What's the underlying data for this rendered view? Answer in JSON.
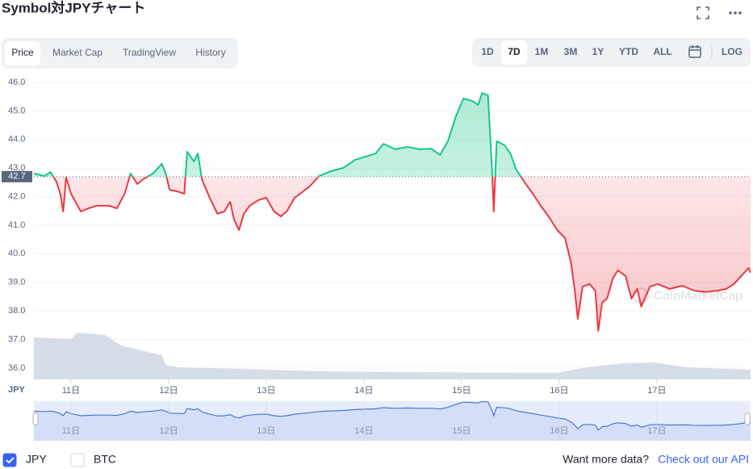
{
  "header": {
    "title": "Symbol対JPYチャート"
  },
  "tabs": [
    "Price",
    "Market Cap",
    "TradingView",
    "History"
  ],
  "active_tab": 0,
  "ranges": [
    "1D",
    "7D",
    "1M",
    "3M",
    "1Y",
    "YTD",
    "ALL"
  ],
  "active_range": 1,
  "scale_button": "LOG",
  "legend": [
    {
      "label": "JPY",
      "checked": true
    },
    {
      "label": "BTC",
      "checked": false
    }
  ],
  "footer": {
    "text": "Want more data?",
    "link": "Check out our API"
  },
  "chart_data": {
    "type": "line",
    "watermark": "CoinMarketCap",
    "y_unit": "JPY",
    "up_color": "#16c784",
    "down_color": "#ea3943",
    "volume_color": "#cfd6e4",
    "navigator_color": "#4a78d0",
    "reference_line": 42.7,
    "x": [
      10.62,
      10.73,
      10.79,
      10.85,
      10.89,
      10.92,
      10.95,
      11.0,
      11.1,
      11.18,
      11.26,
      11.39,
      11.47,
      11.55,
      11.61,
      11.68,
      11.74,
      11.84,
      11.93,
      11.97,
      12.01,
      12.11,
      12.16,
      12.19,
      12.26,
      12.3,
      12.34,
      12.42,
      12.5,
      12.57,
      12.63,
      12.67,
      12.72,
      12.77,
      12.83,
      12.92,
      13.0,
      13.08,
      13.15,
      13.21,
      13.29,
      13.37,
      13.45,
      13.54,
      13.66,
      13.79,
      13.91,
      13.99,
      14.12,
      14.2,
      14.32,
      14.45,
      14.57,
      14.69,
      14.78,
      14.86,
      14.94,
      15.02,
      15.11,
      15.17,
      15.21,
      15.27,
      15.31,
      15.33,
      15.36,
      15.44,
      15.5,
      15.56,
      15.64,
      15.73,
      15.81,
      15.89,
      15.98,
      16.06,
      16.12,
      16.16,
      16.19,
      16.24,
      16.31,
      16.37,
      16.4,
      16.44,
      16.49,
      16.55,
      16.6,
      16.68,
      16.74,
      16.8,
      16.84,
      16.93,
      17.01,
      17.13,
      17.26,
      17.38,
      17.5,
      17.63,
      17.71,
      17.79,
      17.88,
      17.94,
      17.96
    ],
    "values": [
      42.81,
      42.72,
      42.86,
      42.53,
      42.1,
      41.48,
      42.67,
      42.1,
      41.48,
      41.59,
      41.68,
      41.68,
      41.59,
      42.1,
      42.81,
      42.44,
      42.61,
      42.81,
      43.15,
      42.81,
      42.24,
      42.16,
      42.1,
      43.57,
      43.23,
      43.51,
      42.61,
      41.96,
      41.4,
      41.48,
      41.82,
      41.2,
      40.83,
      41.4,
      41.68,
      41.88,
      41.96,
      41.48,
      41.31,
      41.48,
      41.96,
      42.16,
      42.38,
      42.72,
      42.89,
      43.01,
      43.29,
      43.37,
      43.51,
      43.85,
      43.66,
      43.74,
      43.66,
      43.68,
      43.46,
      43.94,
      44.79,
      45.44,
      45.35,
      45.21,
      45.63,
      45.55,
      43.09,
      41.48,
      43.94,
      43.8,
      43.51,
      42.95,
      42.53,
      42.1,
      41.68,
      41.31,
      40.83,
      40.55,
      39.7,
      38.71,
      37.72,
      38.85,
      38.94,
      38.71,
      37.3,
      38.29,
      38.43,
      39.14,
      39.42,
      39.22,
      38.43,
      38.77,
      38.15,
      38.85,
      38.94,
      38.77,
      38.88,
      38.71,
      38.66,
      38.71,
      38.77,
      38.94,
      39.28,
      39.5,
      39.33
    ],
    "volume": {
      "x": [
        10.62,
        11.0,
        11.06,
        11.35,
        11.51,
        11.93,
        11.97,
        12.09,
        12.75,
        13.58,
        14.4,
        15.98,
        16.23,
        16.64,
        16.97,
        17.3,
        17.96
      ],
      "values": [
        52,
        50,
        58,
        55,
        42,
        30,
        18,
        15,
        13,
        10,
        9,
        8,
        14,
        20,
        21,
        15,
        12
      ]
    },
    "xlim": [
      10.62,
      17.96
    ],
    "ylim": [
      35.6,
      46.2
    ],
    "xticks": [
      {
        "value": 11,
        "label": "11日"
      },
      {
        "value": 12,
        "label": "12日"
      },
      {
        "value": 13,
        "label": "13日"
      },
      {
        "value": 14,
        "label": "14日"
      },
      {
        "value": 15,
        "label": "15日"
      },
      {
        "value": 16,
        "label": "16日"
      },
      {
        "value": 17,
        "label": "17日"
      }
    ],
    "yticks": [
      {
        "value": 36,
        "label": "36.0"
      },
      {
        "value": 37,
        "label": "37.0"
      },
      {
        "value": 38,
        "label": "38.0"
      },
      {
        "value": 39,
        "label": "39.0"
      },
      {
        "value": 40,
        "label": "40.0"
      },
      {
        "value": 41,
        "label": "41.0"
      },
      {
        "value": 42,
        "label": "42.0"
      },
      {
        "value": 43,
        "label": "43.0"
      },
      {
        "value": 44,
        "label": "44.0"
      },
      {
        "value": 45,
        "label": "45.0"
      },
      {
        "value": 46,
        "label": "46.0"
      }
    ],
    "grid": true
  }
}
